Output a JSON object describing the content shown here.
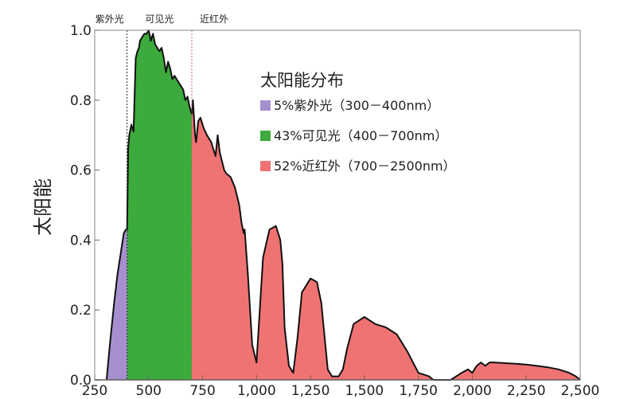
{
  "chart_data": {
    "type": "area",
    "title": "",
    "xlabel": "",
    "ylabel": "太阳能",
    "xlim": [
      250,
      2500
    ],
    "ylim": [
      0,
      1.0
    ],
    "grid": false,
    "x_ticks": [
      250,
      500,
      750,
      1000,
      1250,
      1500,
      1750,
      2000,
      2250,
      2500
    ],
    "x_tick_labels": [
      "250",
      "500",
      "750",
      "1,000",
      "1,250",
      "1,500",
      "1,750",
      "2,000",
      "2,250",
      "2,500"
    ],
    "y_ticks": [
      0.0,
      0.2,
      0.4,
      0.6,
      0.8,
      1.0
    ],
    "y_tick_labels": [
      "0.0",
      "0.2",
      "0.4",
      "0.6",
      "0.8",
      "1.0"
    ],
    "band_labels": [
      "紫外光",
      "可见光",
      "近红外"
    ],
    "band_boundaries": [
      400,
      700
    ],
    "legend": {
      "title": "太阳能分布",
      "position": "top-right",
      "items": [
        {
          "label": "5%紫外光（300－400nm）",
          "color": "#a68fcf"
        },
        {
          "label": "43%可见光（400－700nm）",
          "color": "#3caa3c"
        },
        {
          "label": "52%近红外（700－2500nm）",
          "color": "#f07373"
        }
      ]
    },
    "series": [
      {
        "name": "5%紫外光（300－400nm）",
        "color": "#a68fcf",
        "x": [
          305,
          320,
          340,
          355,
          365,
          375,
          385,
          395,
          400
        ],
        "y": [
          0.0,
          0.1,
          0.22,
          0.3,
          0.34,
          0.38,
          0.42,
          0.43,
          0.43
        ]
      },
      {
        "name": "43%可见光（400－700nm）",
        "color": "#3caa3c",
        "x": [
          400,
          405,
          410,
          420,
          430,
          440,
          448,
          455,
          460,
          470,
          480,
          490,
          500,
          510,
          520,
          530,
          540,
          550,
          560,
          570,
          580,
          590,
          600,
          610,
          620,
          630,
          640,
          650,
          660,
          670,
          680,
          690,
          700
        ],
        "y": [
          0.43,
          0.66,
          0.7,
          0.73,
          0.71,
          0.92,
          0.94,
          0.95,
          0.97,
          0.98,
          0.99,
          0.99,
          1.0,
          0.97,
          0.99,
          0.96,
          0.95,
          0.94,
          0.95,
          0.92,
          0.88,
          0.91,
          0.89,
          0.86,
          0.87,
          0.86,
          0.85,
          0.84,
          0.83,
          0.8,
          0.81,
          0.78,
          0.76
        ]
      },
      {
        "name": "52%近红外（700－2500nm）",
        "color": "#f07373",
        "x": [
          700,
          705,
          715,
          720,
          730,
          740,
          755,
          770,
          790,
          810,
          820,
          830,
          850,
          860,
          880,
          900,
          920,
          930,
          940,
          945,
          960,
          980,
          1000,
          1030,
          1060,
          1090,
          1110,
          1120,
          1130,
          1150,
          1170,
          1190,
          1210,
          1250,
          1280,
          1300,
          1330,
          1350,
          1380,
          1400,
          1420,
          1450,
          1500,
          1550,
          1600,
          1650,
          1700,
          1750,
          1800,
          1820,
          1850,
          1900,
          1950,
          1980,
          2000,
          2020,
          2040,
          2060,
          2080,
          2100,
          2150,
          2200,
          2250,
          2300,
          2350,
          2400,
          2450,
          2480,
          2500
        ],
        "y": [
          0.76,
          0.8,
          0.7,
          0.68,
          0.74,
          0.75,
          0.72,
          0.7,
          0.68,
          0.64,
          0.7,
          0.65,
          0.6,
          0.59,
          0.58,
          0.55,
          0.5,
          0.45,
          0.42,
          0.43,
          0.3,
          0.1,
          0.05,
          0.35,
          0.43,
          0.44,
          0.4,
          0.33,
          0.15,
          0.04,
          0.02,
          0.12,
          0.25,
          0.29,
          0.28,
          0.22,
          0.03,
          0.01,
          0.01,
          0.03,
          0.09,
          0.16,
          0.18,
          0.16,
          0.15,
          0.13,
          0.08,
          0.02,
          0.01,
          0.0,
          0.0,
          0.0,
          0.02,
          0.03,
          0.02,
          0.04,
          0.05,
          0.04,
          0.05,
          0.05,
          0.048,
          0.046,
          0.044,
          0.04,
          0.036,
          0.03,
          0.02,
          0.01,
          0.0
        ]
      }
    ]
  }
}
